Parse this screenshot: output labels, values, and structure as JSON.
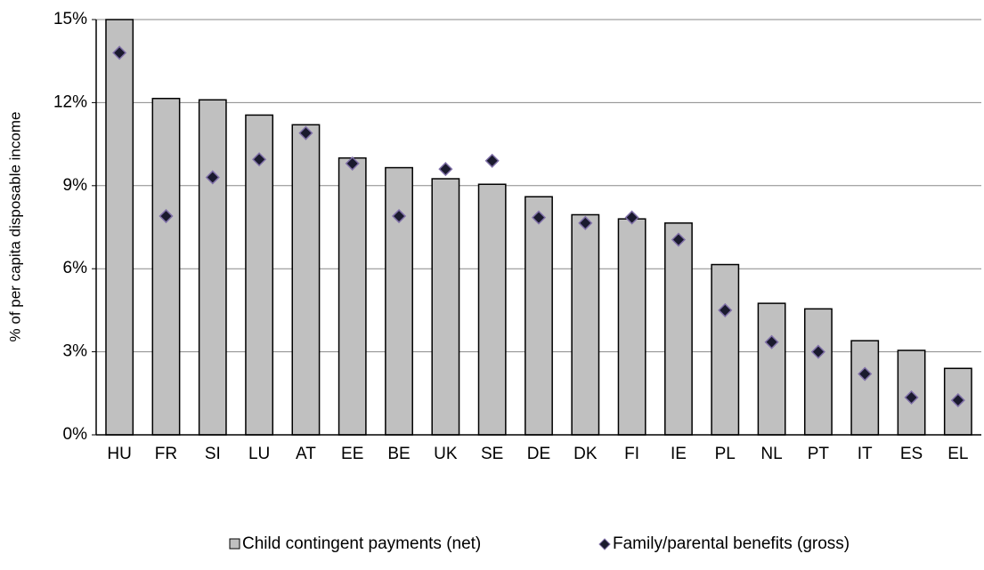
{
  "chart_data": {
    "type": "bar",
    "y_label": "% of per capita disposable income",
    "categories": [
      "HU",
      "FR",
      "SI",
      "LU",
      "AT",
      "EE",
      "BE",
      "UK",
      "SE",
      "DE",
      "DK",
      "FI",
      "IE",
      "PL",
      "NL",
      "PT",
      "IT",
      "ES",
      "EL"
    ],
    "series": [
      {
        "name": "Child contingent payments (net)",
        "type": "bar",
        "color": "#c0c0c0",
        "values": [
          15.0,
          12.15,
          12.1,
          11.55,
          11.2,
          10.0,
          9.65,
          9.25,
          9.05,
          8.6,
          7.95,
          7.8,
          7.65,
          6.15,
          4.75,
          4.55,
          3.4,
          3.05,
          2.4
        ]
      },
      {
        "name": "Family/parental benefits (gross)",
        "type": "scatter",
        "color": "#1a1a2e",
        "values": [
          13.8,
          7.9,
          9.3,
          9.95,
          10.9,
          9.8,
          7.9,
          9.6,
          9.9,
          7.85,
          7.65,
          7.85,
          7.05,
          4.5,
          3.35,
          3.0,
          2.2,
          1.35,
          1.25
        ]
      }
    ],
    "ylim": [
      0,
      15
    ],
    "yticks": [
      {
        "value": 0,
        "label": "0%"
      },
      {
        "value": 3,
        "label": "3%"
      },
      {
        "value": 6,
        "label": "6%"
      },
      {
        "value": 9,
        "label": "9%"
      },
      {
        "value": 12,
        "label": "12%"
      },
      {
        "value": 15,
        "label": "15%"
      }
    ],
    "grid": true,
    "legend": "bottom"
  }
}
